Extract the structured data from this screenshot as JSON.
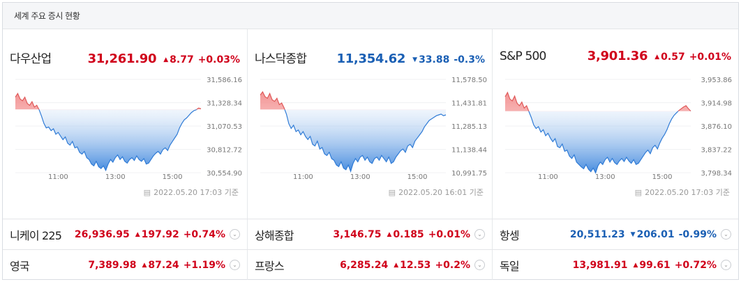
{
  "header": {
    "title": "세계 주요 증시 현황"
  },
  "colors": {
    "up": "#d0021b",
    "down": "#1a5fb4",
    "fill_up": "#f7b6b6",
    "fill_down": "#4a90e2"
  },
  "indices": [
    {
      "name": "다우산업",
      "price": "31,261.90",
      "direction": "up",
      "change": "8.77",
      "change_pct": "+0.03%",
      "y_ticks": [
        "31,586.16",
        "31,328.34",
        "31,070.53",
        "30,812.72",
        "30,554.90"
      ],
      "x_ticks": [
        "11:00",
        "13:00",
        "15:00"
      ],
      "timestamp": "2022.05.20 17:03 기준",
      "chart_data": {
        "type": "line",
        "ylim": [
          30554.9,
          31586.16
        ],
        "reference": 31253.13,
        "x": [
          0,
          5,
          10,
          15,
          20,
          25,
          30,
          35,
          40,
          45,
          50,
          55,
          60,
          65,
          70,
          75,
          80,
          85,
          90,
          95,
          100,
          105,
          110,
          115,
          120,
          125,
          130,
          135,
          140,
          145,
          150,
          155,
          160,
          165,
          170,
          175,
          180,
          185,
          190,
          195,
          200,
          205,
          210,
          215,
          220,
          225,
          230,
          235,
          240,
          245,
          250,
          255,
          260,
          265,
          270,
          275,
          280,
          285,
          290,
          295,
          300,
          305,
          310,
          315,
          320,
          325,
          330,
          335,
          340,
          345,
          350,
          355,
          360,
          365,
          370,
          375,
          380,
          385,
          390
        ],
        "y": [
          31390,
          31430,
          31370,
          31350,
          31390,
          31320,
          31300,
          31340,
          31280,
          31300,
          31250,
          31180,
          31100,
          31050,
          31060,
          31020,
          31040,
          30980,
          31000,
          30960,
          30920,
          30950,
          30880,
          30860,
          30900,
          30830,
          30840,
          30780,
          30760,
          30790,
          30720,
          30700,
          30650,
          30630,
          30680,
          30620,
          30600,
          30630,
          30580,
          30650,
          30700,
          30670,
          30720,
          30750,
          30700,
          30730,
          30680,
          30660,
          30700,
          30720,
          30690,
          30740,
          30700,
          30680,
          30710,
          30650,
          30660,
          30700,
          30740,
          30770,
          30790,
          30760,
          30810,
          30830,
          30800,
          30860,
          30900,
          30940,
          30980,
          31050,
          31100,
          31140,
          31160,
          31190,
          31220,
          31240,
          31250,
          31270,
          31262
        ]
      }
    },
    {
      "name": "나스닥종합",
      "price": "11,354.62",
      "direction": "down",
      "change": "33.88",
      "change_pct": "-0.3%",
      "y_ticks": [
        "11,578.50",
        "11,431.81",
        "11,285.13",
        "11,138.44",
        "10,991.75"
      ],
      "x_ticks": [
        "11:00",
        "13:00",
        "15:00"
      ],
      "timestamp": "2022.05.20 16:01 기준",
      "chart_data": {
        "type": "line",
        "ylim": [
          10991.75,
          11578.5
        ],
        "reference": 11388.5,
        "x": [
          0,
          5,
          10,
          15,
          20,
          25,
          30,
          35,
          40,
          45,
          50,
          55,
          60,
          65,
          70,
          75,
          80,
          85,
          90,
          95,
          100,
          105,
          110,
          115,
          120,
          125,
          130,
          135,
          140,
          145,
          150,
          155,
          160,
          165,
          170,
          175,
          180,
          185,
          190,
          195,
          200,
          205,
          210,
          215,
          220,
          225,
          230,
          235,
          240,
          245,
          250,
          255,
          260,
          265,
          270,
          275,
          280,
          285,
          290,
          295,
          300,
          305,
          310,
          315,
          320,
          325,
          330,
          335,
          340,
          345,
          350,
          355,
          360,
          365,
          370,
          375,
          380,
          385,
          390
        ],
        "y": [
          11480,
          11500,
          11470,
          11460,
          11490,
          11450,
          11440,
          11460,
          11420,
          11430,
          11400,
          11360,
          11300,
          11270,
          11290,
          11250,
          11260,
          11230,
          11250,
          11220,
          11200,
          11220,
          11170,
          11160,
          11190,
          11140,
          11150,
          11110,
          11100,
          11120,
          11080,
          11070,
          11040,
          11030,
          11060,
          11020,
          11010,
          11040,
          11000,
          11050,
          11080,
          11060,
          11090,
          11100,
          11070,
          11090,
          11060,
          11050,
          11080,
          11090,
          11070,
          11100,
          11080,
          11060,
          11090,
          11050,
          11060,
          11090,
          11110,
          11130,
          11140,
          11120,
          11160,
          11170,
          11150,
          11190,
          11210,
          11230,
          11250,
          11280,
          11300,
          11320,
          11330,
          11340,
          11350,
          11355,
          11360,
          11350,
          11355
        ]
      }
    },
    {
      "name": "S&P 500",
      "price": "3,901.36",
      "direction": "up",
      "change": "0.57",
      "change_pct": "+0.01%",
      "y_ticks": [
        "3,953.86",
        "3,914.98",
        "3,876.10",
        "3,837.22",
        "3,798.34"
      ],
      "x_ticks": [
        "11:00",
        "13:00",
        "15:00"
      ],
      "timestamp": "2022.05.20 17:03 기준",
      "chart_data": {
        "type": "line",
        "ylim": [
          3798.34,
          3953.86
        ],
        "reference": 3900.79,
        "x": [
          0,
          5,
          10,
          15,
          20,
          25,
          30,
          35,
          40,
          45,
          50,
          55,
          60,
          65,
          70,
          75,
          80,
          85,
          90,
          95,
          100,
          105,
          110,
          115,
          120,
          125,
          130,
          135,
          140,
          145,
          150,
          155,
          160,
          165,
          170,
          175,
          180,
          185,
          190,
          195,
          200,
          205,
          210,
          215,
          220,
          225,
          230,
          235,
          240,
          245,
          250,
          255,
          260,
          265,
          270,
          275,
          280,
          285,
          290,
          295,
          300,
          305,
          310,
          315,
          320,
          325,
          330,
          335,
          340,
          345,
          350,
          355,
          360,
          365,
          370,
          375,
          380,
          385,
          390
        ],
        "y": [
          3925,
          3932,
          3921,
          3918,
          3926,
          3914,
          3910,
          3916,
          3906,
          3910,
          3900,
          3890,
          3878,
          3872,
          3875,
          3866,
          3870,
          3860,
          3864,
          3856,
          3850,
          3855,
          3842,
          3840,
          3846,
          3834,
          3836,
          3826,
          3822,
          3828,
          3816,
          3812,
          3808,
          3805,
          3812,
          3804,
          3800,
          3806,
          3798,
          3810,
          3816,
          3812,
          3820,
          3824,
          3816,
          3822,
          3815,
          3812,
          3818,
          3822,
          3817,
          3824,
          3818,
          3814,
          3820,
          3812,
          3814,
          3820,
          3826,
          3832,
          3836,
          3830,
          3840,
          3844,
          3838,
          3848,
          3856,
          3862,
          3870,
          3880,
          3888,
          3894,
          3898,
          3902,
          3905,
          3908,
          3910,
          3905,
          3901
        ]
      }
    }
  ],
  "others": [
    {
      "name": "니케이 225",
      "price": "26,936.95",
      "direction": "up",
      "change": "197.92",
      "change_pct": "+0.74%"
    },
    {
      "name": "상해종합",
      "price": "3,146.75",
      "direction": "up",
      "change": "0.185",
      "change_pct": "+0.01%"
    },
    {
      "name": "항셍",
      "price": "20,511.23",
      "direction": "down",
      "change": "206.01",
      "change_pct": "-0.99%"
    },
    {
      "name": "영국",
      "price": "7,389.98",
      "direction": "up",
      "change": "87.24",
      "change_pct": "+1.19%"
    },
    {
      "name": "프랑스",
      "price": "6,285.24",
      "direction": "up",
      "change": "12.53",
      "change_pct": "+0.2%"
    },
    {
      "name": "독일",
      "price": "13,981.91",
      "direction": "up",
      "change": "99.61",
      "change_pct": "+0.72%"
    }
  ],
  "icons": {
    "up": "triangle-up-icon",
    "down": "triangle-down-icon",
    "more": "chevron-down-circle-icon",
    "calendar": "calendar-icon"
  }
}
